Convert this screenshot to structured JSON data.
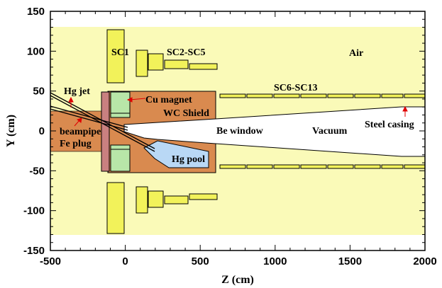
{
  "axes": {
    "xlabel": "Z (cm)",
    "ylabel": "Y (cm)",
    "xlim": [
      -500,
      2000
    ],
    "ylim": [
      -150,
      150
    ],
    "xticks": [
      -500,
      0,
      500,
      1000,
      1500,
      2000
    ],
    "yticks": [
      150,
      100,
      50,
      0,
      -50,
      -100,
      -150
    ]
  },
  "labels": {
    "sc1": "SC1",
    "sc2_sc5": "SC2-SC5",
    "air": "Air",
    "hg_jet": "Hg jet",
    "cu_magnet": "Cu magnet",
    "sc6_sc13": "SC6-SC13",
    "wc_shield": "WC Shield",
    "beampipe": "beampipe",
    "be_window": "Be window",
    "vacuum": "Vacuum",
    "steel_casing": "Steel casing",
    "fe_plug": "Fe plug",
    "hg_pool": "Hg pool"
  },
  "colors": {
    "air": "#fafab8",
    "superconducting_coil": "#f2f25a",
    "copper_magnet": "#b8e6a8",
    "wc_shield": "#d98a4f",
    "fe_plug": "#c98080",
    "hg_pool": "#b9d8f5",
    "arrow": "#e00000"
  }
}
